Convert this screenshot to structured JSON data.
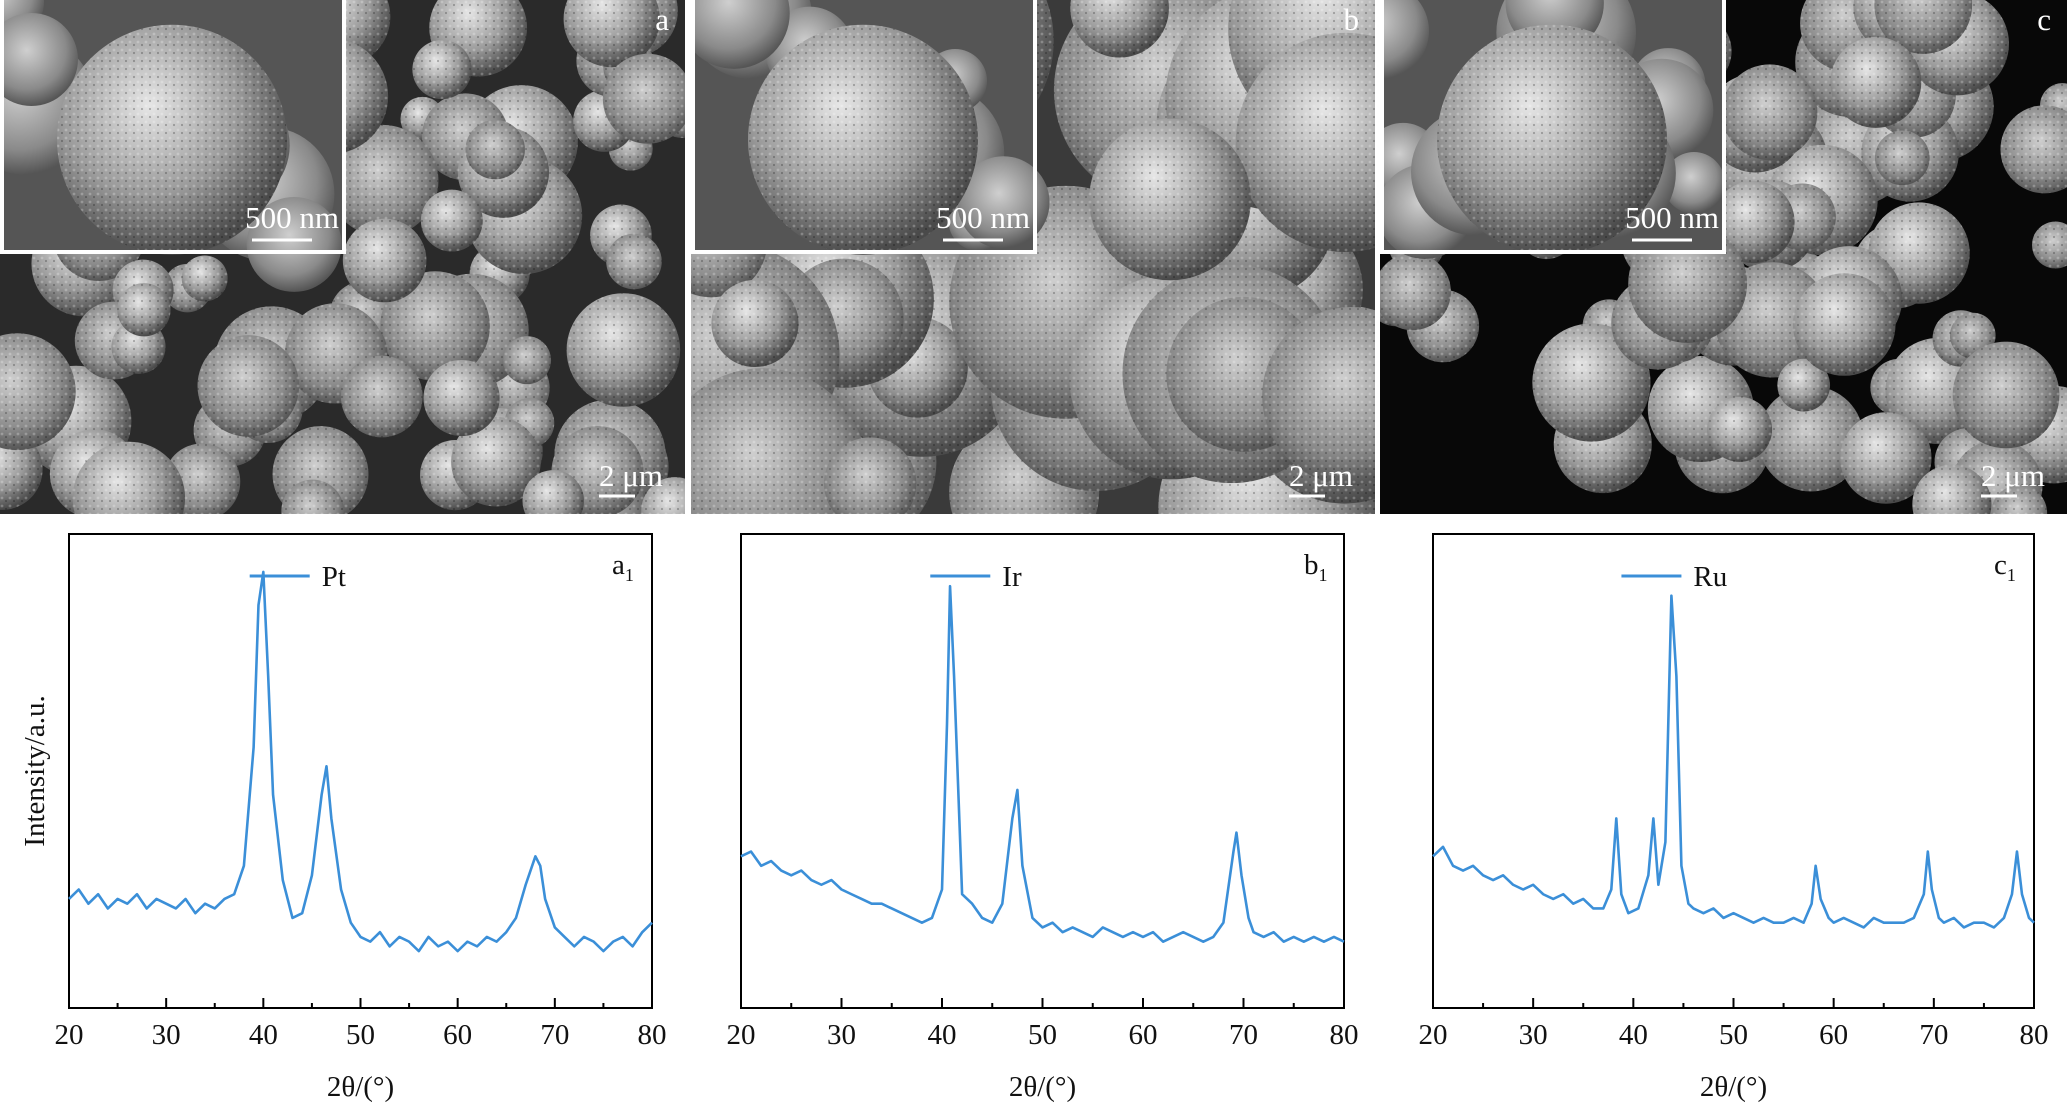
{
  "images": [
    {
      "label": "a",
      "inset_scale": "500 nm",
      "scale": "2 μm"
    },
    {
      "label": "b",
      "inset_scale": "500 nm",
      "scale": "2 μm"
    },
    {
      "label": "c",
      "inset_scale": "500 nm",
      "scale": "2 μm"
    }
  ],
  "chart_data": [
    {
      "type": "line",
      "panel_label": "a",
      "panel_label_sub": "1",
      "x": [
        20,
        21,
        22,
        23,
        24,
        25,
        26,
        27,
        28,
        29,
        30,
        31,
        32,
        33,
        34,
        35,
        36,
        37,
        38,
        39,
        39.5,
        40,
        40.5,
        41,
        42,
        43,
        44,
        45,
        46,
        46.5,
        47,
        48,
        49,
        50,
        51,
        52,
        53,
        54,
        55,
        56,
        57,
        58,
        59,
        60,
        61,
        62,
        63,
        64,
        65,
        66,
        67,
        68,
        68.5,
        69,
        70,
        71,
        72,
        73,
        74,
        75,
        76,
        77,
        78,
        79,
        80
      ],
      "series": [
        {
          "name": "Pt",
          "color": "#3b8fd8",
          "values": [
            23,
            25,
            22,
            24,
            21,
            23,
            22,
            24,
            21,
            23,
            22,
            21,
            23,
            20,
            22,
            21,
            23,
            24,
            30,
            55,
            85,
            92,
            70,
            45,
            27,
            19,
            20,
            28,
            45,
            51,
            40,
            25,
            18,
            15,
            14,
            16,
            13,
            15,
            14,
            12,
            15,
            13,
            14,
            12,
            14,
            13,
            15,
            14,
            16,
            19,
            26,
            32,
            30,
            23,
            17,
            15,
            13,
            15,
            14,
            12,
            14,
            15,
            13,
            16,
            18
          ]
        }
      ],
      "xlim": [
        20,
        80
      ],
      "xticks": [
        20,
        30,
        40,
        50,
        60,
        70,
        80
      ],
      "xminorticks": [
        25,
        35,
        45,
        55,
        65,
        75
      ],
      "ylim": [
        0,
        100
      ],
      "xlabel": "2θ/(°)",
      "ylabel": "Intensity/a.u."
    },
    {
      "type": "line",
      "panel_label": "b",
      "panel_label_sub": "1",
      "x": [
        20,
        21,
        22,
        23,
        24,
        25,
        26,
        27,
        28,
        29,
        30,
        31,
        32,
        33,
        34,
        35,
        36,
        37,
        38,
        39,
        40,
        40.5,
        40.8,
        41.2,
        42,
        43,
        44,
        45,
        46,
        47,
        47.5,
        48,
        49,
        50,
        51,
        52,
        53,
        54,
        55,
        56,
        57,
        58,
        59,
        60,
        61,
        62,
        63,
        64,
        65,
        66,
        67,
        68,
        69,
        69.3,
        69.8,
        70.5,
        71,
        72,
        73,
        74,
        75,
        76,
        77,
        78,
        79,
        80
      ],
      "series": [
        {
          "name": "Ir",
          "color": "#3b8fd8",
          "values": [
            32,
            33,
            30,
            31,
            29,
            28,
            29,
            27,
            26,
            27,
            25,
            24,
            23,
            22,
            22,
            21,
            20,
            19,
            18,
            19,
            25,
            60,
            89,
            70,
            24,
            22,
            19,
            18,
            22,
            40,
            46,
            30,
            19,
            17,
            18,
            16,
            17,
            16,
            15,
            17,
            16,
            15,
            16,
            15,
            16,
            14,
            15,
            16,
            15,
            14,
            15,
            18,
            33,
            37,
            28,
            19,
            16,
            15,
            16,
            14,
            15,
            14,
            15,
            14,
            15,
            14
          ]
        }
      ],
      "xlim": [
        20,
        80
      ],
      "xticks": [
        20,
        30,
        40,
        50,
        60,
        70,
        80
      ],
      "xminorticks": [
        25,
        35,
        45,
        55,
        65,
        75
      ],
      "ylim": [
        0,
        100
      ],
      "xlabel": "2θ/(°)"
    },
    {
      "type": "line",
      "panel_label": "c",
      "panel_label_sub": "1",
      "x": [
        20,
        21,
        22,
        23,
        24,
        25,
        26,
        27,
        28,
        29,
        30,
        31,
        32,
        33,
        34,
        35,
        36,
        37,
        37.8,
        38.3,
        38.8,
        39.5,
        40.5,
        41.5,
        42,
        42.5,
        43.2,
        43.8,
        44.3,
        44.8,
        45.5,
        46,
        47,
        48,
        49,
        50,
        51,
        52,
        53,
        54,
        55,
        56,
        57,
        57.8,
        58.2,
        58.7,
        59.5,
        60,
        61,
        62,
        63,
        64,
        65,
        66,
        67,
        68,
        69,
        69.4,
        69.8,
        70.5,
        71,
        72,
        73,
        74,
        75,
        76,
        77,
        77.8,
        78.3,
        78.8,
        79.5,
        80
      ],
      "series": [
        {
          "name": "Ru",
          "color": "#3b8fd8",
          "values": [
            32,
            34,
            30,
            29,
            30,
            28,
            27,
            28,
            26,
            25,
            26,
            24,
            23,
            24,
            22,
            23,
            21,
            21,
            25,
            40,
            24,
            20,
            21,
            28,
            40,
            26,
            35,
            87,
            70,
            30,
            22,
            21,
            20,
            21,
            19,
            20,
            19,
            18,
            19,
            18,
            18,
            19,
            18,
            22,
            30,
            23,
            19,
            18,
            19,
            18,
            17,
            19,
            18,
            18,
            18,
            19,
            24,
            33,
            25,
            19,
            18,
            19,
            17,
            18,
            18,
            17,
            19,
            24,
            33,
            24,
            19,
            18
          ]
        }
      ],
      "xlim": [
        20,
        80
      ],
      "xticks": [
        20,
        30,
        40,
        50,
        60,
        70,
        80
      ],
      "xminorticks": [
        25,
        35,
        45,
        55,
        65,
        75
      ],
      "ylim": [
        0,
        100
      ],
      "xlabel": "2θ/(°)"
    }
  ]
}
